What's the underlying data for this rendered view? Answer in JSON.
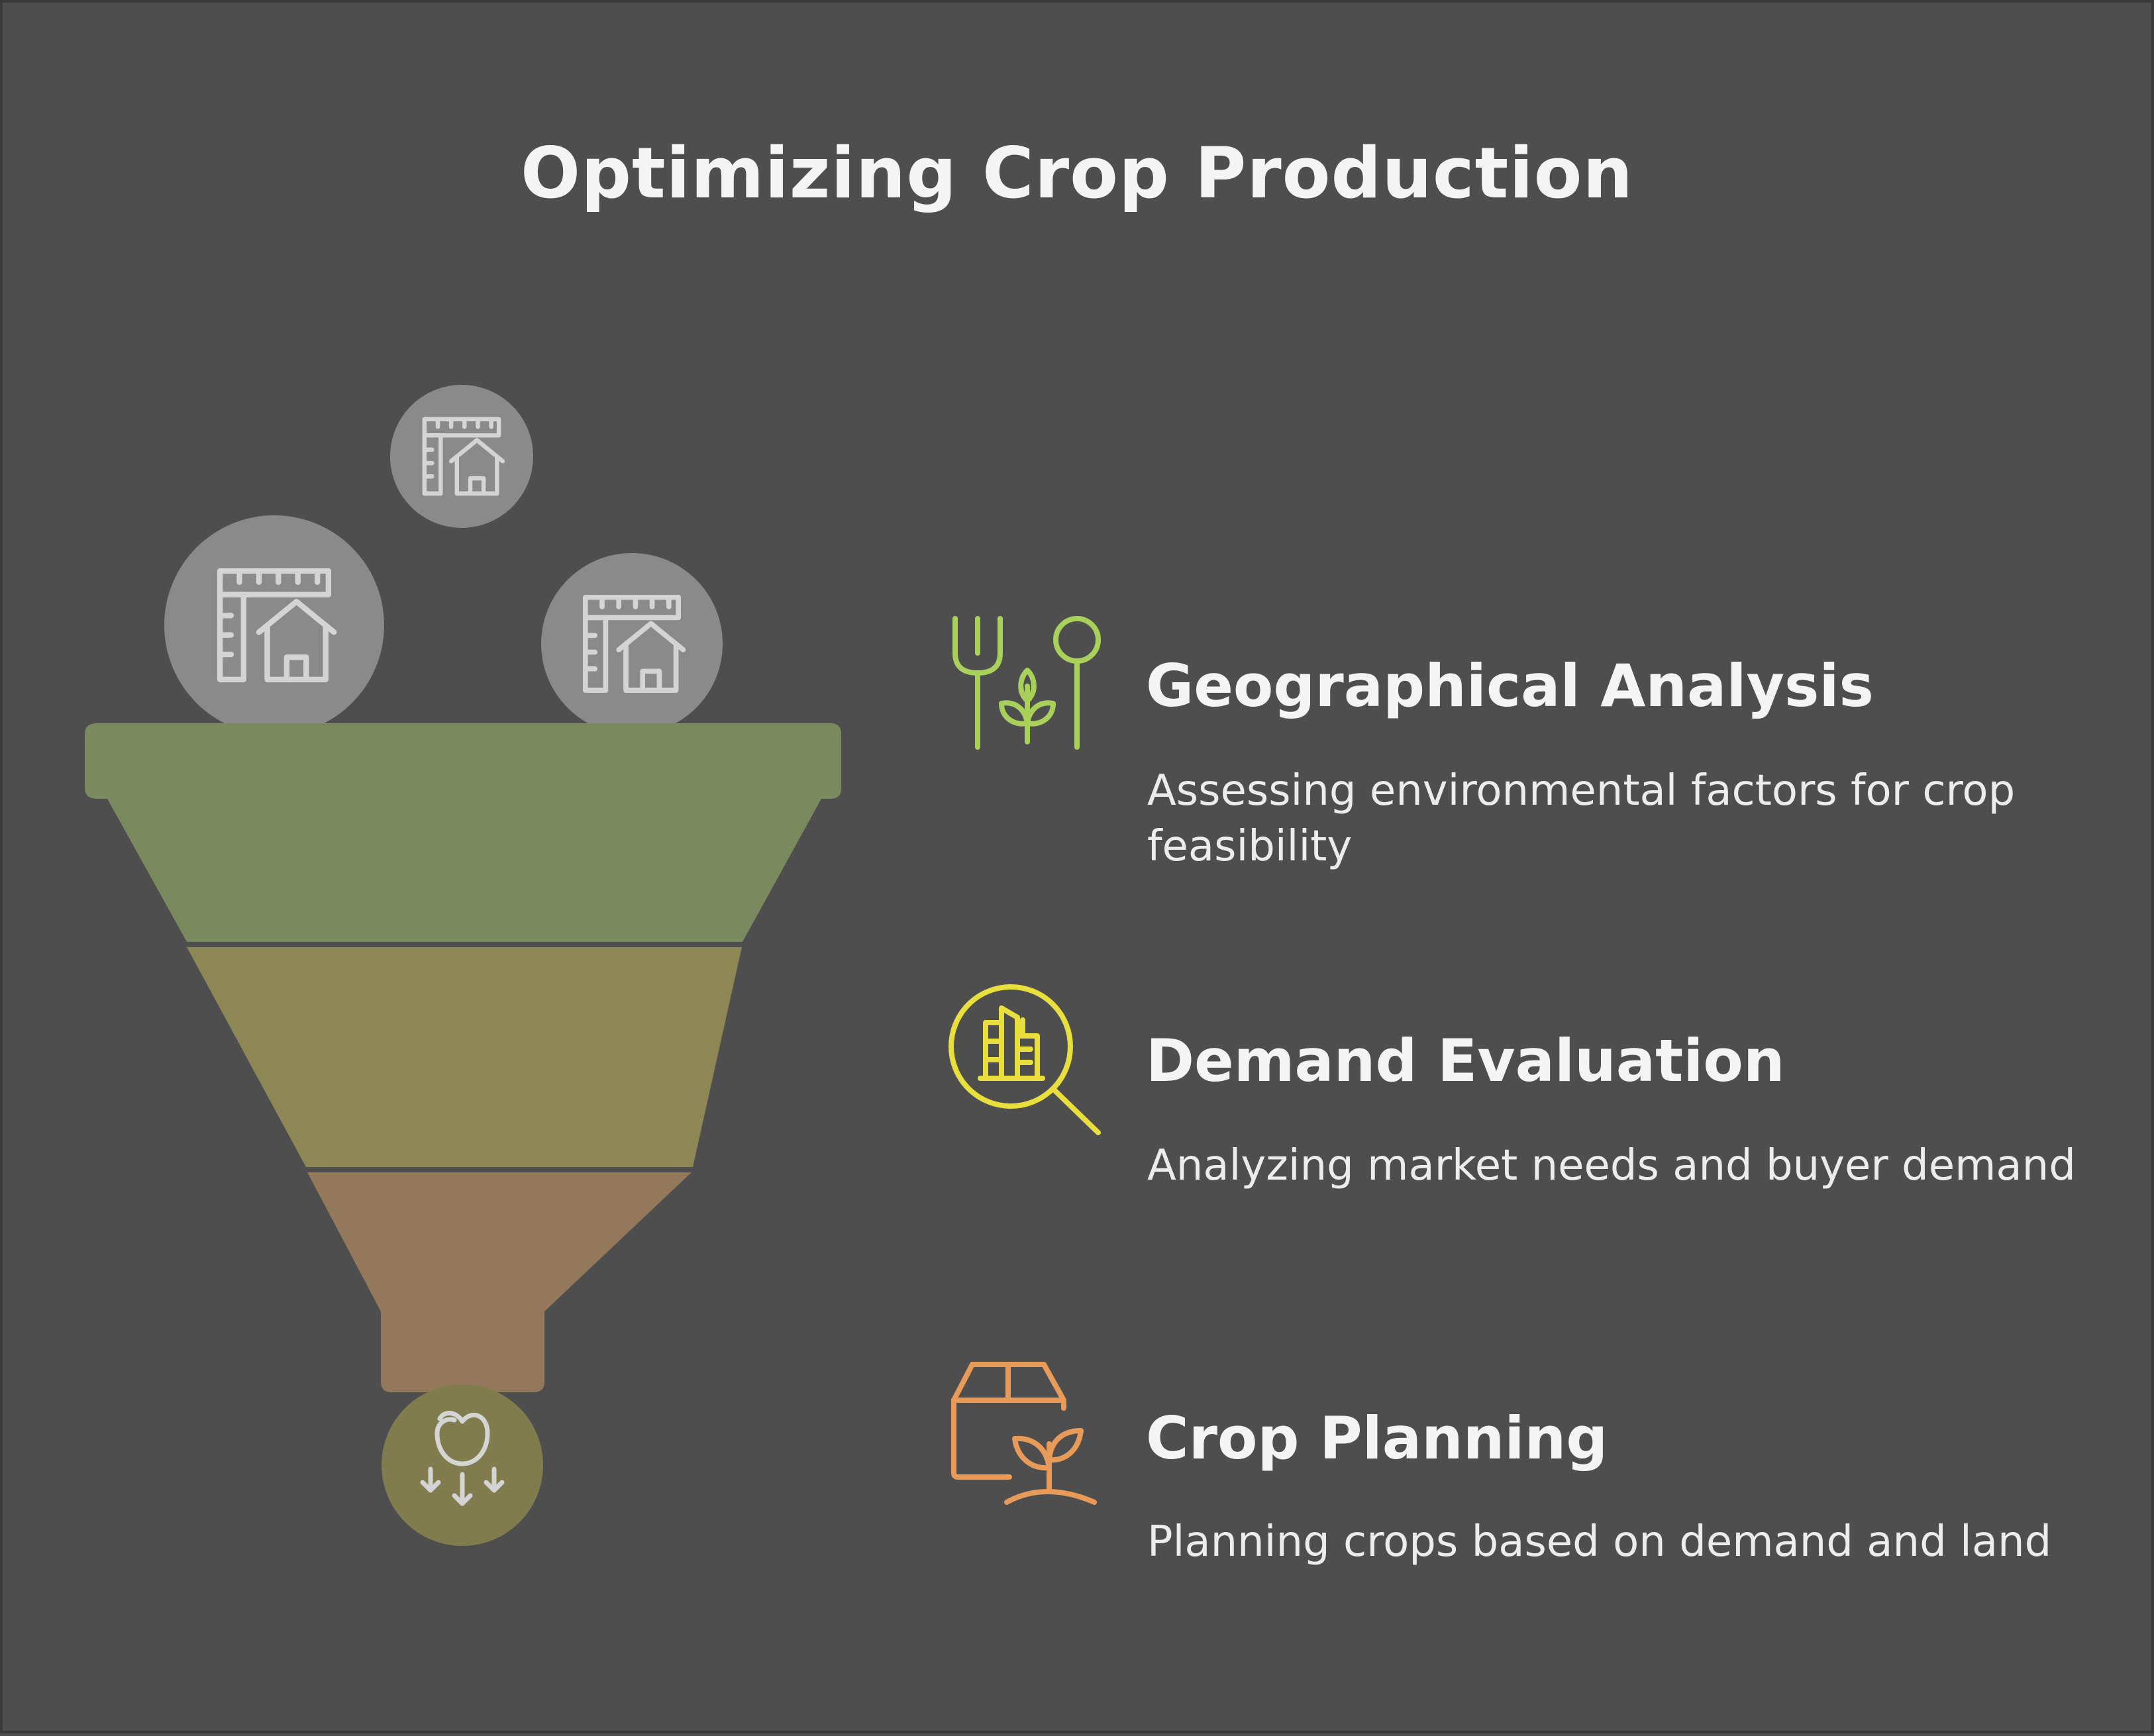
{
  "title": "Optimizing Crop Production",
  "colors": {
    "background": "#4e4e4e",
    "stage1": "#7a8a5e",
    "stage2": "#8c8754",
    "stage3": "#94785c",
    "output_circle": "#817c4e",
    "input_circle": "#8a8a8a",
    "icon_green": "#a8d05a",
    "icon_yellow": "#e8de3e",
    "icon_orange": "#e89a58"
  },
  "inputs": [
    {
      "icon": "ruler-house-icon"
    },
    {
      "icon": "ruler-house-icon"
    },
    {
      "icon": "ruler-house-icon"
    }
  ],
  "output": {
    "icon": "apple-down-arrows-icon"
  },
  "steps": [
    {
      "title": "Geographical Analysis",
      "description": "Assessing environmental factors for crop feasibility",
      "icon": "fork-sprout-spoon-icon"
    },
    {
      "title": "Demand Evaluation",
      "description": "Analyzing market needs and buyer demand",
      "icon": "market-search-icon"
    },
    {
      "title": "Crop Planning",
      "description": "Planning crops based on demand and land",
      "icon": "box-sprout-icon"
    }
  ]
}
